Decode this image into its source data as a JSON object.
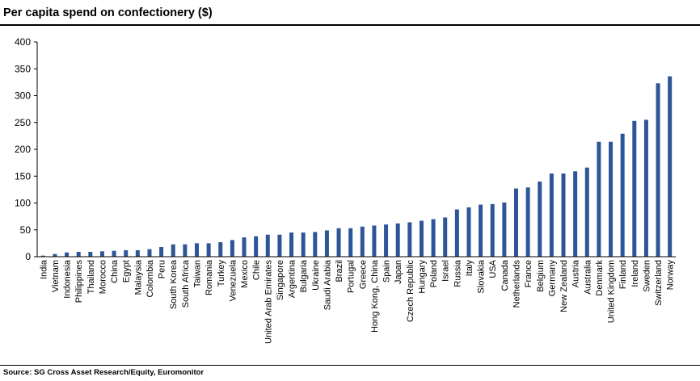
{
  "header": {
    "title": "Per capita spend on confectionery ($)"
  },
  "footer": {
    "source": "Source: SG Cross Asset Research/Equity, Euromonitor"
  },
  "chart_data": {
    "type": "bar",
    "title": "Per capita spend on confectionery ($)",
    "xlabel": "",
    "ylabel": "",
    "ylim": [
      0,
      400
    ],
    "yticks": [
      0,
      50,
      100,
      150,
      200,
      250,
      300,
      350,
      400
    ],
    "grid": false,
    "legend": "none",
    "bar_color": "#2e5597",
    "categories": [
      "India",
      "Vietnam",
      "Indonesia",
      "Philippines",
      "Thailand",
      "Morocco",
      "China",
      "Egypt",
      "Malaysia",
      "Colombia",
      "Peru",
      "South Korea",
      "South Africa",
      "Taiwan",
      "Romania",
      "Turkey",
      "Venezuela",
      "Mexico",
      "Chile",
      "United Arab Emirates",
      "Singapore",
      "Argentina",
      "Bulgaria",
      "Ukraine",
      "Saudi Arabia",
      "Brazil",
      "Portugal",
      "Greece",
      "Hong Kong, China",
      "Spain",
      "Japan",
      "Czech Republic",
      "Hungary",
      "Poland",
      "Israel",
      "Russia",
      "Italy",
      "Slovakia",
      "USA",
      "Canada",
      "Netherlands",
      "France",
      "Belgium",
      "Germany",
      "New Zealand",
      "Austria",
      "Australia",
      "Denmark",
      "United Kingdom",
      "Finland",
      "Ireland",
      "Sweden",
      "Switzerland",
      "Norway"
    ],
    "values": [
      2,
      5,
      8,
      9,
      9,
      10,
      11,
      12,
      12,
      14,
      18,
      23,
      23,
      25,
      25,
      27,
      31,
      36,
      38,
      41,
      41,
      45,
      45,
      46,
      49,
      53,
      53,
      56,
      58,
      60,
      62,
      64,
      67,
      70,
      73,
      88,
      92,
      97,
      98,
      101,
      127,
      129,
      140,
      155,
      155,
      159,
      166,
      214,
      214,
      229,
      253,
      255,
      323,
      336
    ]
  }
}
